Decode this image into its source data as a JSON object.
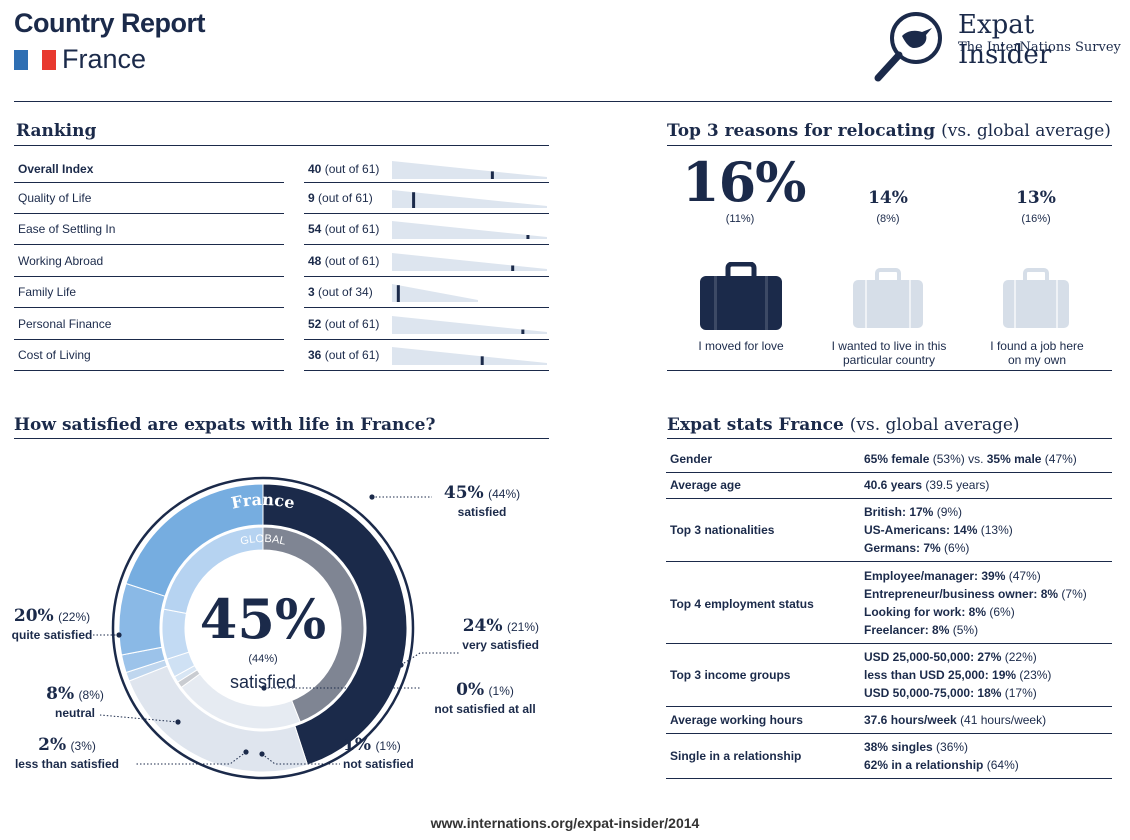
{
  "header": {
    "title": "Country Report",
    "country": "France",
    "logo_title": "Expat Insider",
    "logo_subtitle": "The InterNations Survey"
  },
  "ranking": {
    "title": "Ranking",
    "rows": [
      {
        "label": "Overall Index",
        "rank": "40",
        "suffix": "(out of 61)",
        "rank_num": 40,
        "total": 61
      },
      {
        "label": "Quality of Life",
        "rank": "9",
        "suffix": "(out of 61)",
        "rank_num": 9,
        "total": 61
      },
      {
        "label": "Ease of Settling In",
        "rank": "54",
        "suffix": "(out of 61)",
        "rank_num": 54,
        "total": 61
      },
      {
        "label": "Working Abroad",
        "rank": "48",
        "suffix": "(out of 61)",
        "rank_num": 48,
        "total": 61
      },
      {
        "label": "Family Life",
        "rank": "3",
        "suffix": "(out of 34)",
        "rank_num": 3,
        "total": 34
      },
      {
        "label": "Personal Finance",
        "rank": "52",
        "suffix": "(out of 61)",
        "rank_num": 52,
        "total": 61
      },
      {
        "label": "Cost of Living",
        "rank": "36",
        "suffix": "(out of 61)",
        "rank_num": 36,
        "total": 61
      }
    ]
  },
  "reasons": {
    "title": "Top 3 reasons for relocating",
    "title_note": "(vs. global average)",
    "items": [
      {
        "pct": "16%",
        "global": "(11%)",
        "label_1": "I moved for love",
        "label_2": "",
        "highlight": true
      },
      {
        "pct": "14%",
        "global": "(8%)",
        "label_1": "I wanted to live in this",
        "label_2": "particular country",
        "highlight": false
      },
      {
        "pct": "13%",
        "global": "(16%)",
        "label_1": "I found a job here",
        "label_2": "on my own",
        "highlight": false
      }
    ]
  },
  "satisfaction": {
    "title": "How satisfied are expats with life in France?",
    "ring_outer_label": "France",
    "ring_inner_label": "GLOBAL",
    "center_pct": "45%",
    "center_global": "(44%)",
    "center_label": "satisfied",
    "labels": [
      {
        "pct": "45%",
        "global": "(44%)",
        "text": "satisfied"
      },
      {
        "pct": "24%",
        "global": "(21%)",
        "text": "very satisfied"
      },
      {
        "pct": "0%",
        "global": "(1%)",
        "text": "not satisfied at all"
      },
      {
        "pct": "1%",
        "global": "(1%)",
        "text": "not satisfied"
      },
      {
        "pct": "2%",
        "global": "(3%)",
        "text": "less than satisfied"
      },
      {
        "pct": "8%",
        "global": "(8%)",
        "text": "neutral"
      },
      {
        "pct": "20%",
        "global": "(22%)",
        "text": "quite satisfied"
      }
    ]
  },
  "chart_data": {
    "type": "pie",
    "categories": [
      "satisfied",
      "very satisfied",
      "not satisfied at all",
      "not satisfied",
      "less than satisfied",
      "neutral",
      "quite satisfied"
    ],
    "series": [
      {
        "name": "France",
        "values": [
          45,
          24,
          0,
          1,
          2,
          8,
          20
        ]
      },
      {
        "name": "GLOBAL",
        "values": [
          44,
          21,
          1,
          1,
          3,
          8,
          22
        ]
      }
    ],
    "colors": [
      "#1b2a4a",
      "#dfe5ee",
      "#8a8f99",
      "#bfd6ee",
      "#9cc3ea",
      "#8ab9e6",
      "#76ade0"
    ],
    "global_colors": [
      "#7f8593",
      "#e6ebf2",
      "#c9ccd1",
      "#d8e6f4",
      "#cfe1f4",
      "#c2daf3",
      "#b6d3f1"
    ]
  },
  "stats": {
    "title": "Expat stats France",
    "title_note": "(vs. global average)",
    "gender": {
      "label": "Gender",
      "a_bold": "65% female",
      "a_norm": "(53%) vs.",
      "b_bold": "35% male",
      "b_norm": "(47%)"
    },
    "age": {
      "label": "Average age",
      "bold": "40.6 years",
      "norm": "(39.5 years)"
    },
    "nationalities": {
      "label": "Top 3 nationalities",
      "lines": [
        {
          "bold": "British: 17%",
          "norm": "(9%)"
        },
        {
          "bold": "US-Americans: 14%",
          "norm": "(13%)"
        },
        {
          "bold": "Germans: 7%",
          "norm": "(6%)"
        }
      ]
    },
    "employment": {
      "label": "Top 4 employment status",
      "lines": [
        {
          "bold": "Employee/manager: 39%",
          "norm": "(47%)"
        },
        {
          "bold": "Entrepreneur/business owner: 8%",
          "norm": "(7%)"
        },
        {
          "bold": "Looking for work: 8%",
          "norm": "(6%)"
        },
        {
          "bold": "Freelancer: 8%",
          "norm": "(5%)"
        }
      ]
    },
    "income": {
      "label": "Top 3 income groups",
      "lines": [
        {
          "bold": "USD 25,000-50,000: 27%",
          "norm": "(22%)"
        },
        {
          "bold": "less than USD 25,000: 19%",
          "norm": "(23%)"
        },
        {
          "bold": "USD 50,000-75,000: 18%",
          "norm": "(17%)"
        }
      ]
    },
    "hours": {
      "label": "Average working hours",
      "bold": "37.6 hours/week",
      "norm": "(41 hours/week)"
    },
    "single": {
      "label": "Single in a relationship",
      "lines": [
        {
          "bold": "38% singles",
          "norm": "(36%)"
        },
        {
          "bold": "62% in a relationship",
          "norm": "(64%)"
        }
      ]
    }
  },
  "footer": {
    "url": "www.internations.org/expat-insider/2014"
  }
}
